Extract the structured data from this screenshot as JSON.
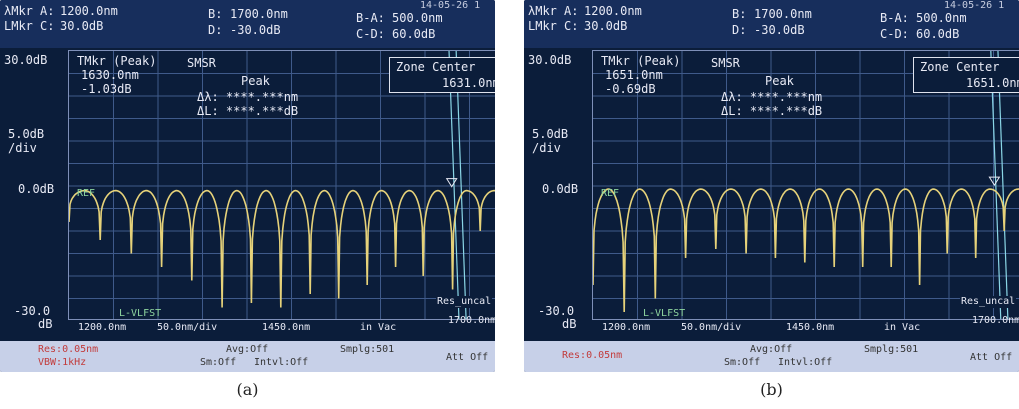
{
  "panels": [
    {
      "caption": "(a)",
      "header": {
        "xmkr_label": "λMkr",
        "a_label": "A:",
        "a_value": "1200.0nm",
        "lmkr_label": "LMkr",
        "c_label": "C:",
        "c_value": "30.0dB",
        "b_label": "B:",
        "b_value": "1700.0nm",
        "d_label": "D:",
        "d_value": "-30.0dB",
        "ba_label": "B-A:",
        "ba_value": "500.0nm",
        "cd_label": "C-D:",
        "cd_value": "60.0dB",
        "timestamp": "14-05-26 1"
      },
      "ref_level": "30.0dB",
      "scale": "5.0dB",
      "scale_unit": "/div",
      "zero_level": "0.0dB",
      "bottom_level": "-30.0",
      "bottom_unit": "dB",
      "ref_marker": "REF",
      "lvlfst": "L-VLFST",
      "tmkr": {
        "title": "TMkr (Peak)",
        "wavelength": "1630.0nm",
        "level": "-1.03dB"
      },
      "smsr": "SMSR",
      "peak": "Peak",
      "delta_lambda": "Δλ: ****.***nm",
      "delta_l": "ΔL: ****.***dB",
      "zone": {
        "title": "Zone Center",
        "value": "1631.0nm"
      },
      "res_uncal": "Res_uncal",
      "axis": {
        "start": "1200.0nm",
        "per_div": "50.0nm/div",
        "center": "1450.0nm",
        "medium": "in Vac",
        "stop": "1700.0nm"
      },
      "footer": {
        "res": "Res:0.05nm",
        "vbw": "VBW:1kHz",
        "avg": "Avg:Off",
        "sm": "Sm:Off",
        "intvl": "Intvl:Off",
        "smplg": "Smplg:501",
        "att": "Att Off"
      },
      "trace_color": "#e6d27a",
      "trace": {
        "dips_nm": [
          1200,
          1235,
          1270,
          1304,
          1338,
          1372,
          1405,
          1438,
          1471,
          1503,
          1535,
          1567,
          1598,
          1631,
          1662,
          1694
        ],
        "peak_level_db": -1.03,
        "dip_levels_db": [
          -8,
          -12,
          -15,
          -18,
          -21,
          -27,
          -26,
          -27,
          -24,
          -25,
          -22,
          -18,
          -20,
          -23,
          -10,
          -6
        ]
      }
    },
    {
      "caption": "(b)",
      "header": {
        "xmkr_label": "λMkr",
        "a_label": "A:",
        "a_value": "1200.0nm",
        "lmkr_label": "LMkr",
        "c_label": "C:",
        "c_value": "30.0dB",
        "b_label": "B:",
        "b_value": "1700.0nm",
        "d_label": "D:",
        "d_value": "-30.0dB",
        "ba_label": "B-A:",
        "ba_value": "500.0nm",
        "cd_label": "C-D:",
        "cd_value": "60.0dB",
        "timestamp": "14-05-26 1"
      },
      "ref_level": "30.0dB",
      "scale": "5.0dB",
      "scale_unit": "/div",
      "zero_level": "0.0dB",
      "bottom_level": "-30.0",
      "bottom_unit": "dB",
      "ref_marker": "REF",
      "lvlfst": "L-VLFST",
      "tmkr": {
        "title": "TMkr (Peak)",
        "wavelength": "1651.0nm",
        "level": "-0.69dB"
      },
      "smsr": "SMSR",
      "peak": "Peak",
      "delta_lambda": "Δλ: ****.***nm",
      "delta_l": "ΔL: ****.***dB",
      "zone": {
        "title": "Zone Center",
        "value": "1651.0nm"
      },
      "res_uncal": "Res_uncal",
      "axis": {
        "start": "1200.0nm",
        "per_div": "50.0nm/div",
        "center": "1450.0nm",
        "medium": "in Vac",
        "stop": "1700.0nm"
      },
      "footer": {
        "res": "Res:0.05nm",
        "vbw": "",
        "avg": "Avg:Off",
        "sm": "Sm:Off",
        "intvl": "Intvl:Off",
        "smplg": "Smplg:501",
        "att": "Att Off"
      },
      "trace_color": "#e6d27a",
      "trace": {
        "dips_nm": [
          1200,
          1235,
          1270,
          1304,
          1338,
          1372,
          1405,
          1438,
          1471,
          1503,
          1535,
          1567,
          1598,
          1630,
          1662,
          1694
        ],
        "peak_level_db": -0.69,
        "dip_levels_db": [
          -22,
          -28,
          -25,
          -16,
          -14,
          -15,
          -16,
          -17,
          -18,
          -18,
          -18,
          -22,
          -15,
          -16,
          -10,
          -6
        ]
      }
    }
  ]
}
